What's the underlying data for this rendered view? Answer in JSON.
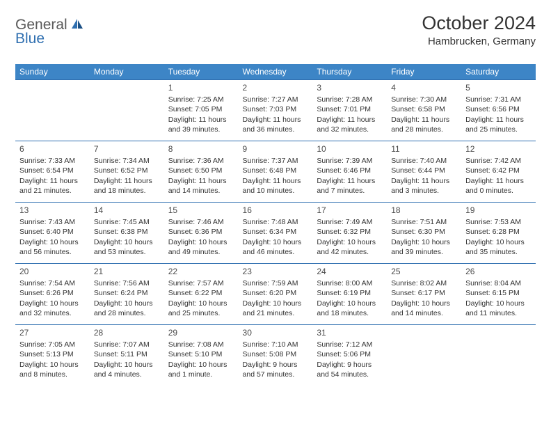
{
  "brand": {
    "part1": "General",
    "part2": "Blue"
  },
  "title": "October 2024",
  "location": "Hambrucken, Germany",
  "colors": {
    "header_bg": "#3d85c6",
    "header_text": "#ffffff",
    "border": "#2f6fb0",
    "text": "#333333",
    "logo_gray": "#5a5a5a",
    "logo_blue": "#2f6fb0",
    "page_bg": "#ffffff"
  },
  "typography": {
    "title_fontsize": 27,
    "location_fontsize": 15,
    "header_fontsize": 12,
    "cell_fontsize": 10.5,
    "daynum_fontsize": 12
  },
  "weekdays": [
    "Sunday",
    "Monday",
    "Tuesday",
    "Wednesday",
    "Thursday",
    "Friday",
    "Saturday"
  ],
  "weeks": [
    [
      null,
      null,
      {
        "n": "1",
        "sunrise": "Sunrise: 7:25 AM",
        "sunset": "Sunset: 7:05 PM",
        "daylight": "Daylight: 11 hours and 39 minutes."
      },
      {
        "n": "2",
        "sunrise": "Sunrise: 7:27 AM",
        "sunset": "Sunset: 7:03 PM",
        "daylight": "Daylight: 11 hours and 36 minutes."
      },
      {
        "n": "3",
        "sunrise": "Sunrise: 7:28 AM",
        "sunset": "Sunset: 7:01 PM",
        "daylight": "Daylight: 11 hours and 32 minutes."
      },
      {
        "n": "4",
        "sunrise": "Sunrise: 7:30 AM",
        "sunset": "Sunset: 6:58 PM",
        "daylight": "Daylight: 11 hours and 28 minutes."
      },
      {
        "n": "5",
        "sunrise": "Sunrise: 7:31 AM",
        "sunset": "Sunset: 6:56 PM",
        "daylight": "Daylight: 11 hours and 25 minutes."
      }
    ],
    [
      {
        "n": "6",
        "sunrise": "Sunrise: 7:33 AM",
        "sunset": "Sunset: 6:54 PM",
        "daylight": "Daylight: 11 hours and 21 minutes."
      },
      {
        "n": "7",
        "sunrise": "Sunrise: 7:34 AM",
        "sunset": "Sunset: 6:52 PM",
        "daylight": "Daylight: 11 hours and 18 minutes."
      },
      {
        "n": "8",
        "sunrise": "Sunrise: 7:36 AM",
        "sunset": "Sunset: 6:50 PM",
        "daylight": "Daylight: 11 hours and 14 minutes."
      },
      {
        "n": "9",
        "sunrise": "Sunrise: 7:37 AM",
        "sunset": "Sunset: 6:48 PM",
        "daylight": "Daylight: 11 hours and 10 minutes."
      },
      {
        "n": "10",
        "sunrise": "Sunrise: 7:39 AM",
        "sunset": "Sunset: 6:46 PM",
        "daylight": "Daylight: 11 hours and 7 minutes."
      },
      {
        "n": "11",
        "sunrise": "Sunrise: 7:40 AM",
        "sunset": "Sunset: 6:44 PM",
        "daylight": "Daylight: 11 hours and 3 minutes."
      },
      {
        "n": "12",
        "sunrise": "Sunrise: 7:42 AM",
        "sunset": "Sunset: 6:42 PM",
        "daylight": "Daylight: 11 hours and 0 minutes."
      }
    ],
    [
      {
        "n": "13",
        "sunrise": "Sunrise: 7:43 AM",
        "sunset": "Sunset: 6:40 PM",
        "daylight": "Daylight: 10 hours and 56 minutes."
      },
      {
        "n": "14",
        "sunrise": "Sunrise: 7:45 AM",
        "sunset": "Sunset: 6:38 PM",
        "daylight": "Daylight: 10 hours and 53 minutes."
      },
      {
        "n": "15",
        "sunrise": "Sunrise: 7:46 AM",
        "sunset": "Sunset: 6:36 PM",
        "daylight": "Daylight: 10 hours and 49 minutes."
      },
      {
        "n": "16",
        "sunrise": "Sunrise: 7:48 AM",
        "sunset": "Sunset: 6:34 PM",
        "daylight": "Daylight: 10 hours and 46 minutes."
      },
      {
        "n": "17",
        "sunrise": "Sunrise: 7:49 AM",
        "sunset": "Sunset: 6:32 PM",
        "daylight": "Daylight: 10 hours and 42 minutes."
      },
      {
        "n": "18",
        "sunrise": "Sunrise: 7:51 AM",
        "sunset": "Sunset: 6:30 PM",
        "daylight": "Daylight: 10 hours and 39 minutes."
      },
      {
        "n": "19",
        "sunrise": "Sunrise: 7:53 AM",
        "sunset": "Sunset: 6:28 PM",
        "daylight": "Daylight: 10 hours and 35 minutes."
      }
    ],
    [
      {
        "n": "20",
        "sunrise": "Sunrise: 7:54 AM",
        "sunset": "Sunset: 6:26 PM",
        "daylight": "Daylight: 10 hours and 32 minutes."
      },
      {
        "n": "21",
        "sunrise": "Sunrise: 7:56 AM",
        "sunset": "Sunset: 6:24 PM",
        "daylight": "Daylight: 10 hours and 28 minutes."
      },
      {
        "n": "22",
        "sunrise": "Sunrise: 7:57 AM",
        "sunset": "Sunset: 6:22 PM",
        "daylight": "Daylight: 10 hours and 25 minutes."
      },
      {
        "n": "23",
        "sunrise": "Sunrise: 7:59 AM",
        "sunset": "Sunset: 6:20 PM",
        "daylight": "Daylight: 10 hours and 21 minutes."
      },
      {
        "n": "24",
        "sunrise": "Sunrise: 8:00 AM",
        "sunset": "Sunset: 6:19 PM",
        "daylight": "Daylight: 10 hours and 18 minutes."
      },
      {
        "n": "25",
        "sunrise": "Sunrise: 8:02 AM",
        "sunset": "Sunset: 6:17 PM",
        "daylight": "Daylight: 10 hours and 14 minutes."
      },
      {
        "n": "26",
        "sunrise": "Sunrise: 8:04 AM",
        "sunset": "Sunset: 6:15 PM",
        "daylight": "Daylight: 10 hours and 11 minutes."
      }
    ],
    [
      {
        "n": "27",
        "sunrise": "Sunrise: 7:05 AM",
        "sunset": "Sunset: 5:13 PM",
        "daylight": "Daylight: 10 hours and 8 minutes."
      },
      {
        "n": "28",
        "sunrise": "Sunrise: 7:07 AM",
        "sunset": "Sunset: 5:11 PM",
        "daylight": "Daylight: 10 hours and 4 minutes."
      },
      {
        "n": "29",
        "sunrise": "Sunrise: 7:08 AM",
        "sunset": "Sunset: 5:10 PM",
        "daylight": "Daylight: 10 hours and 1 minute."
      },
      {
        "n": "30",
        "sunrise": "Sunrise: 7:10 AM",
        "sunset": "Sunset: 5:08 PM",
        "daylight": "Daylight: 9 hours and 57 minutes."
      },
      {
        "n": "31",
        "sunrise": "Sunrise: 7:12 AM",
        "sunset": "Sunset: 5:06 PM",
        "daylight": "Daylight: 9 hours and 54 minutes."
      },
      null,
      null
    ]
  ]
}
